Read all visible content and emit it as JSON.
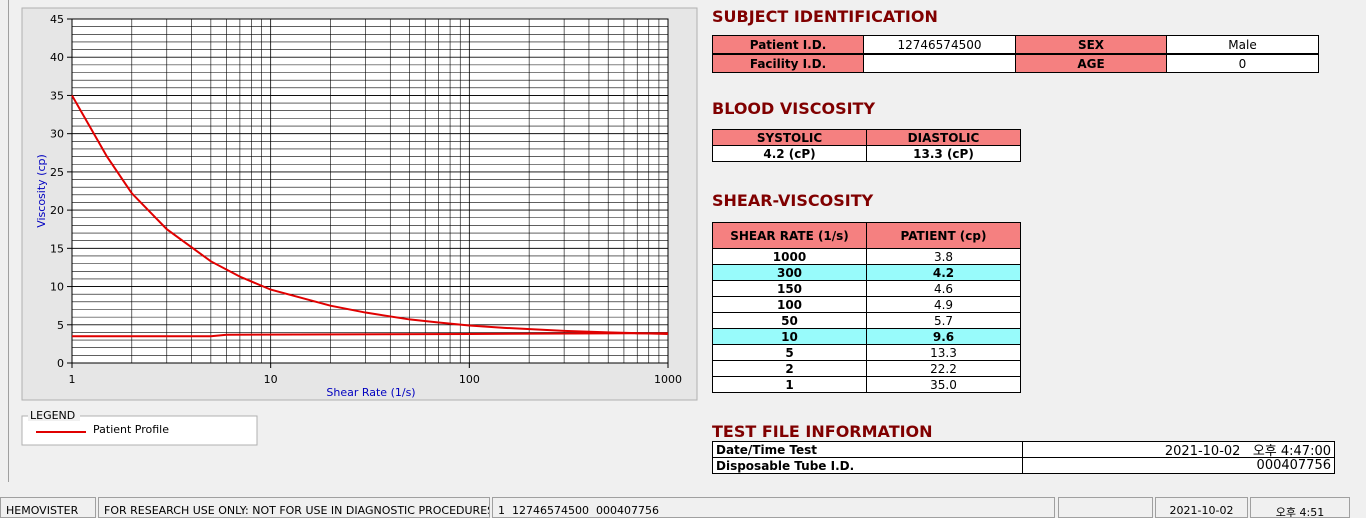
{
  "chart_data": {
    "type": "line",
    "x_label": "Shear Rate (1/s)",
    "y_label": "Viscosity (cp)",
    "xscale": "log",
    "xlim": [
      1,
      1000
    ],
    "ylim": [
      0,
      45
    ],
    "xticks": [
      1,
      10,
      100,
      1000
    ],
    "yticks": [
      0,
      5,
      10,
      15,
      20,
      25,
      30,
      35,
      40,
      45
    ],
    "grid": true,
    "legend_title": "LEGEND",
    "series": [
      {
        "name": "Patient Profile",
        "color": "#e00000",
        "x": [
          1,
          1.5,
          2,
          3,
          5,
          7,
          10,
          20,
          30,
          50,
          70,
          100,
          150,
          300,
          500,
          1000
        ],
        "values": [
          35,
          27,
          22.2,
          17.5,
          13.3,
          11.3,
          9.6,
          7.5,
          6.6,
          5.7,
          5.3,
          4.9,
          4.6,
          4.2,
          4.0,
          3.8
        ]
      },
      {
        "color": "#e00000",
        "x": [
          1,
          5,
          6,
          100,
          1000
        ],
        "values": [
          3.5,
          3.5,
          3.7,
          3.8,
          3.9
        ]
      }
    ]
  },
  "subject_identification": {
    "title": "SUBJECT IDENTIFICATION",
    "fields": [
      {
        "label": "Patient I.D.",
        "value": "12746574500"
      },
      {
        "label": "SEX",
        "value": "Male"
      },
      {
        "label": "Facility I.D."
      },
      {
        "label": "AGE",
        "value": "0"
      }
    ]
  },
  "blood_viscosity": {
    "title": "BLOOD VISCOSITY",
    "headers": [
      "SYSTOLIC",
      "DIASTOLIC"
    ],
    "values": [
      "4.2 (cP)",
      "13.3 (cP)"
    ]
  },
  "shear_viscosity": {
    "title": "SHEAR-VISCOSITY",
    "headers": [
      "SHEAR RATE (1/s)",
      "PATIENT (cp)"
    ],
    "highlighted_rows": [
      1,
      5
    ],
    "rows": [
      [
        "1000",
        "3.8"
      ],
      [
        "300",
        "4.2"
      ],
      [
        "150",
        "4.6"
      ],
      [
        "100",
        "4.9"
      ],
      [
        "50",
        "5.7"
      ],
      [
        "10",
        "9.6"
      ],
      [
        "5",
        "13.3"
      ],
      [
        "2",
        "22.2"
      ],
      [
        "1",
        "35.0"
      ]
    ]
  },
  "test_file_information": {
    "title": "TEST FILE INFORMATION",
    "rows": [
      [
        "Date/Time Test",
        "2021-10-02   오후 4:47:00"
      ],
      [
        "Disposable Tube I.D.",
        "000407756"
      ]
    ]
  },
  "status_bar": [
    "HEMOVISTER",
    "FOR RESEARCH USE ONLY: NOT FOR USE IN DIAGNOSTIC PROCEDURES",
    "1  12746574500  000407756",
    "2021-10-02",
    "오후 4:51"
  ]
}
